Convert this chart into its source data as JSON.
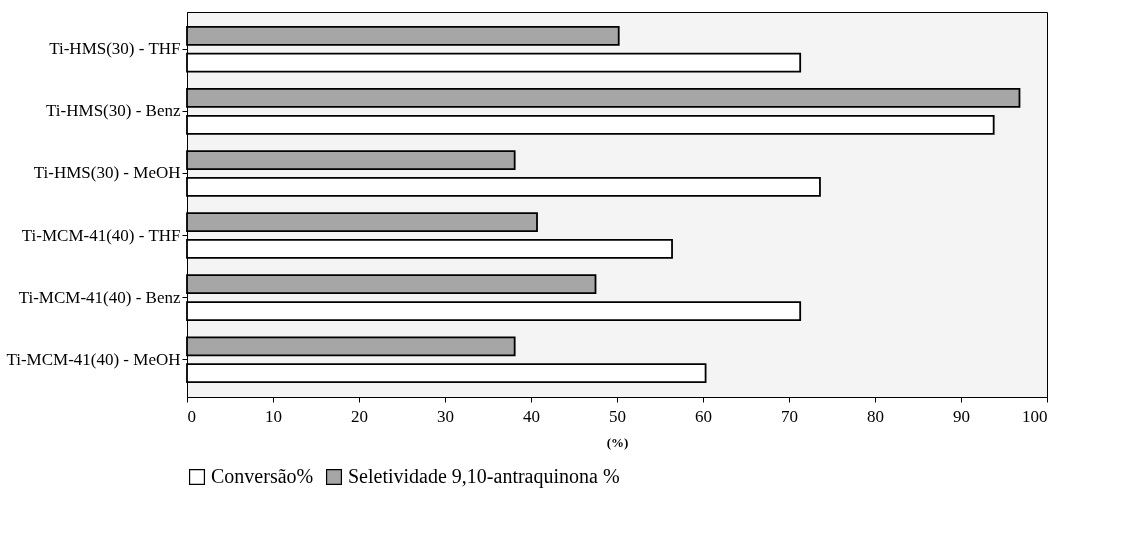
{
  "chart_data": {
    "type": "bar",
    "orientation": "horizontal",
    "xlabel": "(%)",
    "categories": [
      "Ti-HMS(30) - THF",
      "Ti-HMS(30) - Benz",
      "Ti-HMS(30) - MeOH",
      "Ti-MCM-41(40) - THF",
      "Ti-MCM-41(40) - Benz",
      "Ti-MCM-41(40) - MeOH"
    ],
    "series": [
      {
        "name": "Seletividade 9,10-antraquinona %",
        "color": "#a6a6a6",
        "values": [
          50.2,
          96.8,
          38.1,
          40.7,
          47.5,
          38.1
        ]
      },
      {
        "name": "Conversão%",
        "color": "#ffffff",
        "values": [
          71.3,
          93.8,
          73.6,
          56.4,
          71.3,
          60.3
        ]
      }
    ],
    "xlim": [
      0,
      100
    ],
    "xticks": [
      0,
      10,
      20,
      30,
      40,
      50,
      60,
      70,
      80,
      90,
      100
    ],
    "grid": false,
    "legend": "bottom"
  }
}
